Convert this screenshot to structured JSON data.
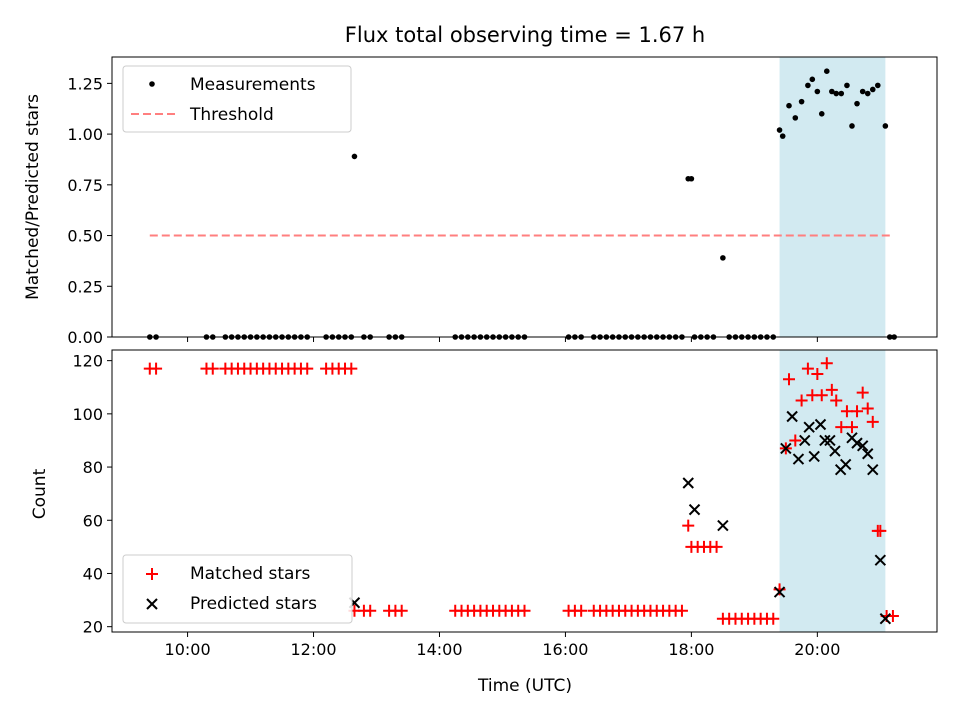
{
  "chart_data": {
    "title": "Flux total observing time = 1.67 h",
    "xlabel": "Time (UTC)",
    "x_unit": "hours UTC",
    "xlim": [
      8.8,
      21.9
    ],
    "x_ticks": [
      10,
      12,
      14,
      16,
      18,
      20
    ],
    "x_tick_labels": [
      "10:00",
      "12:00",
      "14:00",
      "16:00",
      "18:00",
      "20:00"
    ],
    "observing_window": [
      19.4,
      21.08
    ],
    "colors": {
      "measurement": "#000000",
      "threshold": "#ff7f7f",
      "matched": "#ff0000",
      "predicted": "#000000",
      "shade": "#add8e6"
    },
    "panels": [
      {
        "type": "scatter",
        "ylabel": "Matched/Predicted stars",
        "ylim": [
          0,
          1.38
        ],
        "y_ticks": [
          0,
          0.25,
          0.5,
          0.75,
          1.0,
          1.25
        ],
        "y_tick_labels": [
          "0.00",
          "0.25",
          "0.50",
          "0.75",
          "1.00",
          "1.25"
        ],
        "legend": [
          {
            "label": "Measurements",
            "marker": "dot"
          },
          {
            "label": "Threshold",
            "marker": "dashed-line"
          }
        ],
        "threshold": {
          "y": 0.5,
          "x_range": [
            9.4,
            21.2
          ]
        },
        "series": [
          {
            "name": "Measurements",
            "x": [
              9.4,
              9.5,
              10.3,
              10.4,
              10.6,
              10.7,
              10.8,
              10.9,
              11.0,
              11.1,
              11.2,
              11.3,
              11.4,
              11.5,
              11.6,
              11.7,
              11.8,
              11.9,
              12.2,
              12.3,
              12.4,
              12.5,
              12.6,
              12.65,
              12.8,
              12.9,
              13.2,
              13.3,
              13.4,
              14.25,
              14.35,
              14.45,
              14.55,
              14.65,
              14.75,
              14.85,
              14.95,
              15.05,
              15.15,
              15.25,
              15.35,
              16.05,
              16.15,
              16.25,
              16.45,
              16.55,
              16.65,
              16.75,
              16.85,
              16.95,
              17.05,
              17.15,
              17.25,
              17.35,
              17.45,
              17.55,
              17.65,
              17.75,
              17.85,
              17.95,
              18.0,
              18.05,
              18.15,
              18.25,
              18.35,
              18.5,
              18.6,
              18.7,
              18.8,
              18.9,
              19.0,
              19.1,
              19.2,
              19.3,
              19.4,
              19.45,
              19.55,
              19.65,
              19.75,
              19.85,
              19.92,
              20.0,
              20.07,
              20.15,
              20.23,
              20.3,
              20.38,
              20.47,
              20.55,
              20.63,
              20.72,
              20.8,
              20.88,
              20.96,
              21.08,
              21.15,
              21.22
            ],
            "y": [
              0,
              0,
              0,
              0,
              0,
              0,
              0,
              0,
              0,
              0,
              0,
              0,
              0,
              0,
              0,
              0,
              0,
              0,
              0,
              0,
              0,
              0,
              0,
              0.89,
              0,
              0,
              0,
              0,
              0,
              0,
              0,
              0,
              0,
              0,
              0,
              0,
              0,
              0,
              0,
              0,
              0,
              0,
              0,
              0,
              0,
              0,
              0,
              0,
              0,
              0,
              0,
              0,
              0,
              0,
              0,
              0,
              0,
              0,
              0,
              0.78,
              0.78,
              0,
              0,
              0,
              0,
              0.39,
              0,
              0,
              0,
              0,
              0,
              0,
              0,
              0,
              1.02,
              0.99,
              1.14,
              1.08,
              1.16,
              1.24,
              1.27,
              1.21,
              1.1,
              1.31,
              1.21,
              1.2,
              1.2,
              1.24,
              1.04,
              1.15,
              1.21,
              1.2,
              1.22,
              1.24,
              1.04,
              0,
              0
            ]
          }
        ]
      },
      {
        "type": "scatter",
        "ylabel": "Count",
        "ylim": [
          18,
          124
        ],
        "y_ticks": [
          20,
          40,
          60,
          80,
          100,
          120
        ],
        "y_tick_labels": [
          "20",
          "40",
          "60",
          "80",
          "100",
          "120"
        ],
        "legend": [
          {
            "label": "Matched stars",
            "marker": "plus"
          },
          {
            "label": "Predicted stars",
            "marker": "x"
          }
        ],
        "series": [
          {
            "name": "Matched stars",
            "x": [
              9.4,
              9.5,
              10.3,
              10.4,
              10.6,
              10.7,
              10.8,
              10.9,
              11.0,
              11.1,
              11.2,
              11.3,
              11.4,
              11.5,
              11.6,
              11.7,
              11.8,
              11.9,
              12.2,
              12.3,
              12.4,
              12.5,
              12.6,
              12.65,
              12.8,
              12.9,
              13.2,
              13.3,
              13.4,
              14.25,
              14.35,
              14.45,
              14.55,
              14.65,
              14.75,
              14.85,
              14.95,
              15.05,
              15.15,
              15.25,
              15.35,
              16.05,
              16.15,
              16.25,
              16.45,
              16.55,
              16.65,
              16.75,
              16.85,
              16.95,
              17.05,
              17.15,
              17.25,
              17.35,
              17.45,
              17.55,
              17.65,
              17.75,
              17.85,
              17.95,
              18.0,
              18.1,
              18.2,
              18.3,
              18.4,
              18.5,
              18.6,
              18.7,
              18.8,
              18.9,
              19.0,
              19.1,
              19.2,
              19.3,
              19.4,
              19.5,
              19.55,
              19.65,
              19.75,
              19.85,
              19.92,
              20.0,
              20.07,
              20.15,
              20.23,
              20.3,
              20.38,
              20.47,
              20.55,
              20.63,
              20.72,
              20.8,
              20.88,
              20.96,
              21.0,
              21.1,
              21.2
            ],
            "y": [
              117,
              117,
              117,
              117,
              117,
              117,
              117,
              117,
              117,
              117,
              117,
              117,
              117,
              117,
              117,
              117,
              117,
              117,
              117,
              117,
              117,
              117,
              117,
              26,
              26,
              26,
              26,
              26,
              26,
              26,
              26,
              26,
              26,
              26,
              26,
              26,
              26,
              26,
              26,
              26,
              26,
              26,
              26,
              26,
              26,
              26,
              26,
              26,
              26,
              26,
              26,
              26,
              26,
              26,
              26,
              26,
              26,
              26,
              26,
              58,
              50,
              50,
              50,
              50,
              50,
              23,
              23,
              23,
              23,
              23,
              23,
              23,
              23,
              23,
              34,
              87,
              113,
              90,
              105,
              117,
              107,
              115,
              107,
              119,
              109,
              105,
              95,
              101,
              95,
              101,
              108,
              102,
              97,
              56,
              56,
              24,
              24
            ]
          },
          {
            "name": "Predicted stars",
            "x": [
              12.65,
              17.95,
              18.05,
              18.5,
              19.4,
              19.5,
              19.6,
              19.7,
              19.8,
              19.87,
              19.95,
              20.05,
              20.12,
              20.2,
              20.28,
              20.37,
              20.45,
              20.55,
              20.63,
              20.72,
              20.8,
              20.88,
              21.0,
              21.08
            ],
            "y": [
              29,
              74,
              64,
              58,
              33,
              87,
              99,
              83,
              90,
              95,
              84,
              96,
              90,
              90,
              86,
              79,
              81,
              91,
              89,
              88,
              85,
              79,
              45,
              23
            ]
          }
        ]
      }
    ]
  }
}
